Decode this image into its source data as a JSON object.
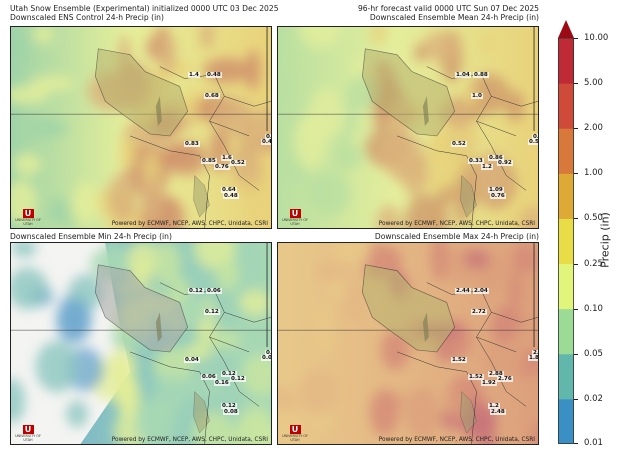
{
  "header": {
    "left_line1": "Utah Snow Ensemble (Experimental) initialized 0000 UTC 03 Dec 2025",
    "right_line1": "96-hr forecast valid 0000 UTC Sun 07 Dec 2025"
  },
  "panels": [
    {
      "title": "Downscaled ENS Control 24-h Precip (in)",
      "palette": [
        "#9fd3a8",
        "#e6ef9a",
        "#e9d27a",
        "#d9b07a",
        "#cf8f6a"
      ],
      "values": [
        "1.4",
        "0.48",
        "0.68",
        "0.83",
        "0.85",
        "1.6",
        "0.52",
        "0.76",
        "0.64",
        "0.48",
        "0.81",
        "0.43"
      ]
    },
    {
      "title": "Downscaled Ensemble Mean 24-h Precip (in)",
      "palette": [
        "#b9dfa1",
        "#e4ee9c",
        "#e9d27a",
        "#dcb47c",
        "#cf9a6c"
      ],
      "values": [
        "1.04",
        "0.88",
        "1.0",
        "0.52",
        "0.33",
        "0.86",
        "0.92",
        "1.2",
        "1.09",
        "0.76",
        "0.46",
        "0.58"
      ]
    },
    {
      "title": "Downscaled Ensemble Min 24-h Precip (in)",
      "palette": [
        "#6fa9cf",
        "#8cc6bf",
        "#a7d8b4",
        "#c9e6a0",
        "#e3ee98"
      ],
      "values": [
        "0.12",
        "0.06",
        "0.12",
        "0.04",
        "0.06",
        "0.12",
        "0.12",
        "0.16",
        "0.12",
        "0.08",
        "0.08",
        "0.03"
      ]
    },
    {
      "title": "Downscaled Ensemble Max 24-h Precip (in)",
      "palette": [
        "#e8c98a",
        "#e4b884",
        "#dca07c",
        "#d48a78",
        "#c9757a"
      ],
      "values": [
        "2.44",
        "2.04",
        "2.72",
        "1.52",
        "1.52",
        "2.88",
        "2.76",
        "1.92",
        "1.2",
        "2.48",
        "2.46",
        "1.8"
      ]
    }
  ],
  "credit": "Powered by ECMWF, NCEP, AWS, CHPC, Unidata, CSRI",
  "logo": {
    "letter": "U",
    "text": "UNIVERSITY OF UTAH"
  },
  "colorbar": {
    "label": "Precip (in)",
    "ticks": [
      "0.01",
      "0.02",
      "0.05",
      "0.10",
      "0.25",
      "0.50",
      "1.00",
      "2.00",
      "5.00",
      "10.00"
    ],
    "colors": [
      "#3a8fc4",
      "#62b7ad",
      "#9bdb96",
      "#e1f57a",
      "#e8dc47",
      "#dfa935",
      "#d8783a",
      "#cf4a38",
      "#bf2a36"
    ],
    "extend_color": "#9e0a14"
  }
}
